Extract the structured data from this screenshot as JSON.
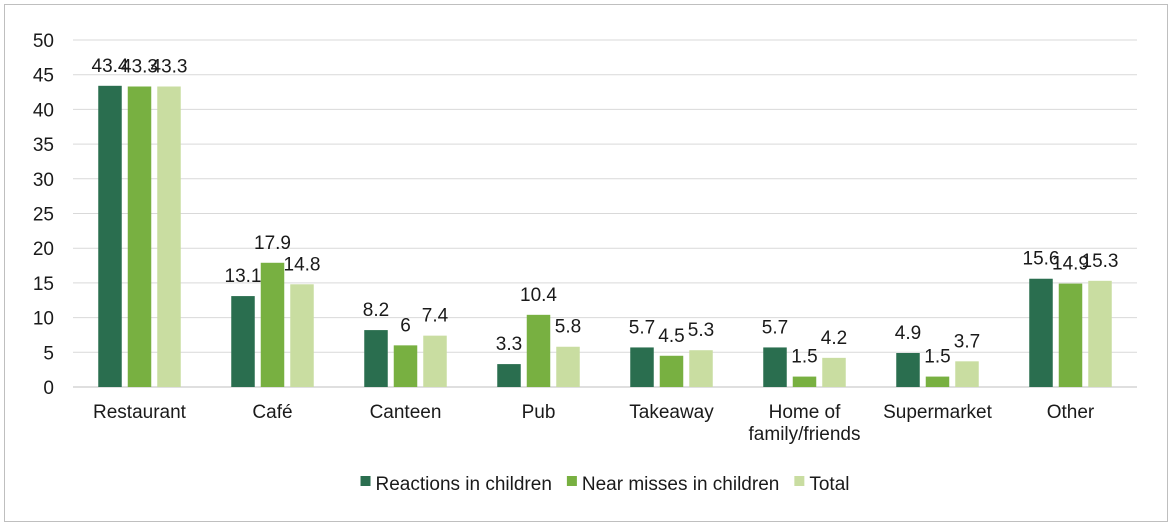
{
  "chart_data": {
    "type": "bar",
    "categories": [
      [
        "Restaurant"
      ],
      [
        "Café"
      ],
      [
        "Canteen"
      ],
      [
        "Pub"
      ],
      [
        "Takeaway"
      ],
      [
        "Home of",
        "family/friends"
      ],
      [
        "Supermarket"
      ],
      [
        "Other"
      ]
    ],
    "series": [
      {
        "name": "Reactions in children",
        "color": "#2a6e4f",
        "values": [
          43.4,
          13.1,
          8.2,
          3.3,
          5.7,
          5.7,
          4.9,
          15.6
        ]
      },
      {
        "name": "Near misses in children",
        "color": "#78b041",
        "values": [
          43.3,
          17.9,
          6,
          10.4,
          4.5,
          1.5,
          1.5,
          14.9
        ]
      },
      {
        "name": "Total",
        "color": "#c9dda1",
        "values": [
          43.3,
          14.8,
          7.4,
          5.8,
          5.3,
          4.2,
          3.7,
          15.3
        ]
      }
    ],
    "ylim": [
      0,
      50
    ],
    "yticks": [
      0,
      5,
      10,
      15,
      20,
      25,
      30,
      35,
      40,
      45,
      50
    ],
    "grid": true,
    "legend_position": "bottom",
    "title": "",
    "xlabel": "",
    "ylabel": ""
  }
}
